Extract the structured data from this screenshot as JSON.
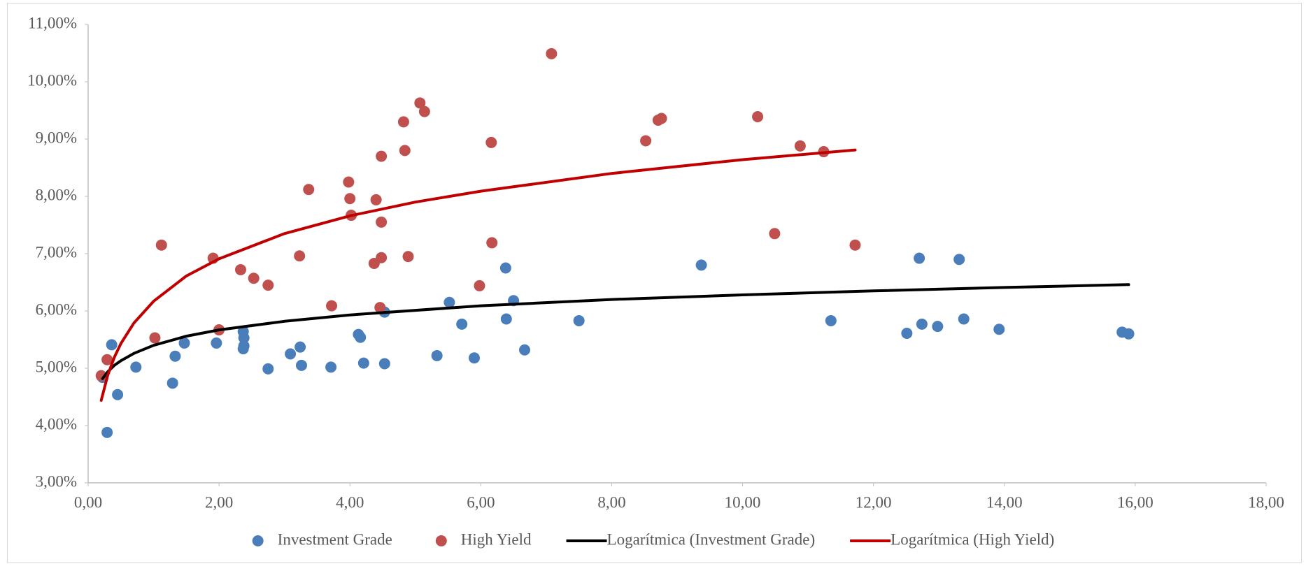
{
  "chart_data": {
    "type": "scatter",
    "xlim": [
      0,
      18
    ],
    "ylim": [
      3,
      11
    ],
    "xticks": [
      {
        "value": 0,
        "label": "0,00"
      },
      {
        "value": 2,
        "label": "2,00"
      },
      {
        "value": 4,
        "label": "4,00"
      },
      {
        "value": 6,
        "label": "6,00"
      },
      {
        "value": 8,
        "label": "8,00"
      },
      {
        "value": 10,
        "label": "10,00"
      },
      {
        "value": 12,
        "label": "12,00"
      },
      {
        "value": 14,
        "label": "14,00"
      },
      {
        "value": 16,
        "label": "16,00"
      },
      {
        "value": 18,
        "label": "18,00"
      }
    ],
    "yticks": [
      {
        "value": 3,
        "label": "3,00%"
      },
      {
        "value": 4,
        "label": "4,00%"
      },
      {
        "value": 5,
        "label": "5,00%"
      },
      {
        "value": 6,
        "label": "6,00%"
      },
      {
        "value": 7,
        "label": "7,00%"
      },
      {
        "value": 8,
        "label": "8,00%"
      },
      {
        "value": 9,
        "label": "9,00%"
      },
      {
        "value": 10,
        "label": "10,00%"
      },
      {
        "value": 11,
        "label": "11,00%"
      }
    ],
    "legend": "bottom",
    "series": [
      {
        "name": "Investment Grade",
        "type": "scatter",
        "color": "#4a7ebb",
        "x": [
          0.22,
          0.29,
          0.45,
          0.36,
          0.73,
          1.29,
          1.33,
          1.47,
          1.96,
          2.37,
          2.38,
          2.38,
          2.37,
          2.75,
          3.09,
          3.24,
          3.26,
          3.71,
          4.13,
          4.16,
          4.21,
          4.53,
          4.53,
          5.33,
          5.52,
          5.71,
          5.9,
          6.38,
          6.39,
          6.5,
          6.67,
          7.5,
          9.37,
          11.35,
          12.51,
          12.7,
          12.74,
          12.98,
          13.31,
          13.38,
          13.92,
          15.8,
          15.9
        ],
        "values": [
          4.84,
          3.88,
          4.54,
          5.41,
          5.02,
          4.74,
          5.21,
          5.44,
          5.44,
          5.64,
          5.53,
          5.39,
          5.34,
          4.99,
          5.25,
          5.37,
          5.05,
          5.02,
          5.59,
          5.54,
          5.09,
          5.98,
          5.08,
          5.22,
          6.15,
          5.77,
          5.18,
          6.75,
          5.86,
          6.18,
          5.32,
          5.83,
          6.8,
          5.83,
          5.61,
          6.92,
          5.77,
          5.73,
          6.9,
          5.86,
          5.68,
          5.63,
          5.6
        ]
      },
      {
        "name": "High Yield",
        "type": "scatter",
        "color": "#c0504d",
        "x": [
          0.2,
          0.29,
          1.02,
          1.12,
          1.91,
          2.0,
          2.33,
          2.53,
          2.75,
          3.23,
          3.37,
          3.72,
          3.98,
          4.0,
          4.02,
          4.37,
          4.4,
          4.46,
          4.48,
          4.48,
          4.48,
          4.82,
          4.84,
          4.89,
          5.07,
          5.14,
          5.98,
          6.16,
          6.17,
          7.08,
          8.52,
          8.71,
          8.76,
          10.23,
          10.49,
          10.88,
          11.24,
          11.72
        ],
        "values": [
          4.87,
          5.15,
          5.53,
          7.15,
          6.92,
          5.67,
          6.72,
          6.57,
          6.45,
          6.96,
          8.12,
          6.09,
          8.25,
          7.96,
          7.67,
          6.83,
          7.94,
          6.06,
          8.7,
          7.55,
          6.93,
          9.3,
          8.8,
          6.95,
          9.63,
          9.48,
          6.44,
          8.94,
          7.19,
          10.49,
          8.97,
          9.33,
          9.36,
          9.39,
          7.35,
          8.88,
          8.78,
          7.15
        ]
      },
      {
        "name": "Logarítmica (Investment Grade)",
        "type": "line",
        "color": "#000000",
        "x": [
          0.22,
          0.3,
          0.4,
          0.5,
          0.7,
          1,
          1.5,
          2,
          3,
          4,
          6,
          8,
          10,
          12,
          14,
          15.9
        ],
        "values": [
          4.82,
          4.94,
          5.05,
          5.13,
          5.26,
          5.4,
          5.56,
          5.67,
          5.82,
          5.93,
          6.09,
          6.2,
          6.28,
          6.35,
          6.41,
          6.46
        ]
      },
      {
        "name": "Logarítmica (High Yield)",
        "type": "line",
        "color": "#c00000",
        "x": [
          0.2,
          0.3,
          0.4,
          0.5,
          0.7,
          1,
          1.5,
          2,
          3,
          4,
          5,
          6,
          8,
          10,
          11.72
        ],
        "values": [
          4.44,
          4.88,
          5.19,
          5.43,
          5.79,
          6.17,
          6.61,
          6.91,
          7.35,
          7.66,
          7.9,
          8.09,
          8.4,
          8.64,
          8.81
        ]
      }
    ]
  }
}
